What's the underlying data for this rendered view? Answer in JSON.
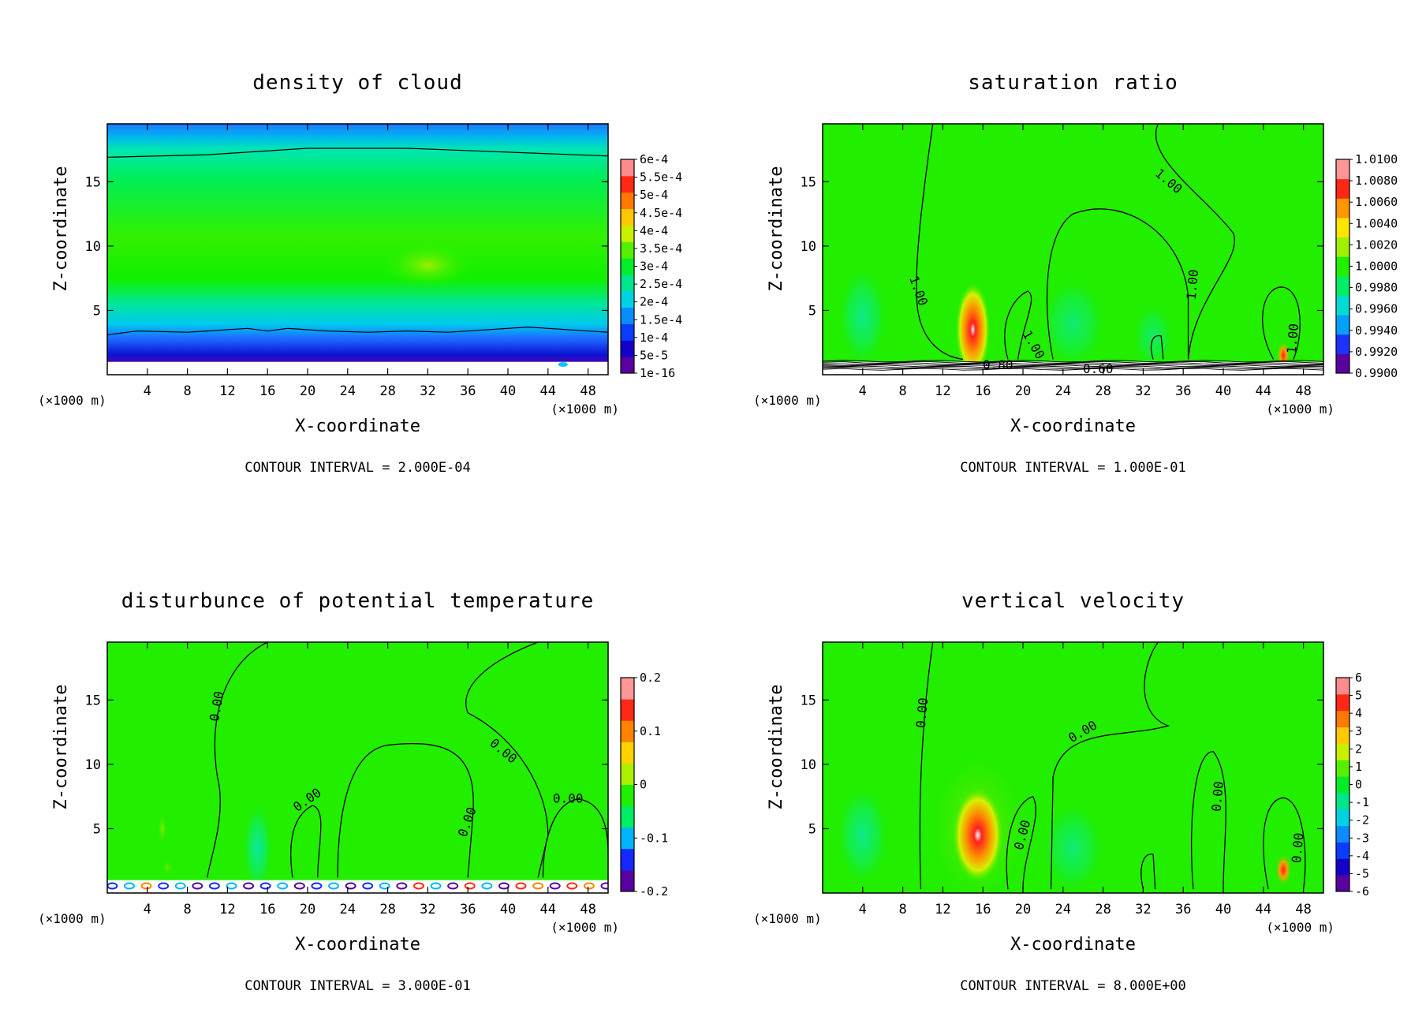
{
  "chart_data": [
    {
      "type": "heatmap",
      "title": "density of cloud",
      "xlabel": "X-coordinate",
      "ylabel": "Z-coordinate",
      "x_unit_left": "(×1000 m)",
      "x_unit_right": "(×1000 m)",
      "x_ticks": [
        "4",
        "8",
        "12",
        "16",
        "20",
        "24",
        "28",
        "32",
        "36",
        "40",
        "44",
        "48"
      ],
      "y_ticks": [
        "5",
        "10",
        "15"
      ],
      "xlim": [
        0,
        50
      ],
      "ylim": [
        0,
        19.5
      ],
      "colorbar": [
        "1e-16",
        "5e-5",
        "1e-4",
        "1.5e-4",
        "2e-4",
        "2.5e-4",
        "3e-4",
        "3.5e-4",
        "4e-4",
        "4.5e-4",
        "5e-4",
        "5.5e-4",
        "6e-4"
      ],
      "contour_labels": [],
      "contour_interval": "CONTOUR INTERVAL = 2.000E-04"
    },
    {
      "type": "heatmap",
      "title": "saturation ratio",
      "xlabel": "X-coordinate",
      "ylabel": "Z-coordinate",
      "x_unit_left": "(×1000 m)",
      "x_unit_right": "(×1000 m)",
      "x_ticks": [
        "4",
        "8",
        "12",
        "16",
        "20",
        "24",
        "28",
        "32",
        "36",
        "40",
        "44",
        "48"
      ],
      "y_ticks": [
        "5",
        "10",
        "15"
      ],
      "xlim": [
        0,
        50
      ],
      "ylim": [
        0,
        19.5
      ],
      "colorbar": [
        "0.9900",
        "0.9920",
        "0.9940",
        "0.9960",
        "0.9980",
        "1.0000",
        "1.0020",
        "1.0040",
        "1.0060",
        "1.0080",
        "1.0100"
      ],
      "contour_labels": [
        "1.00",
        "1.00",
        "1.00",
        "1.00",
        "1.00",
        "0.80",
        "0.60"
      ],
      "contour_interval": "CONTOUR INTERVAL = 1.000E-01"
    },
    {
      "type": "heatmap",
      "title": "disturbunce of potential temperature",
      "xlabel": "X-coordinate",
      "ylabel": "Z-coordinate",
      "x_unit_left": "(×1000 m)",
      "x_unit_right": "(×1000 m)",
      "x_ticks": [
        "4",
        "8",
        "12",
        "16",
        "20",
        "24",
        "28",
        "32",
        "36",
        "40",
        "44",
        "48"
      ],
      "y_ticks": [
        "5",
        "10",
        "15"
      ],
      "xlim": [
        0,
        50
      ],
      "ylim": [
        0,
        19.5
      ],
      "colorbar": [
        "-0.2",
        "-0.1",
        "0",
        "0.1",
        "0.2"
      ],
      "contour_labels": [
        "0.00",
        "0.00",
        "0.00",
        "0.00",
        "0.00"
      ],
      "contour_interval": "CONTOUR INTERVAL = 3.000E-01"
    },
    {
      "type": "heatmap",
      "title": "vertical velocity",
      "xlabel": "X-coordinate",
      "ylabel": "Z-coordinate",
      "x_unit_left": "(×1000 m)",
      "x_unit_right": "(×1000 m)",
      "x_ticks": [
        "4",
        "8",
        "12",
        "16",
        "20",
        "24",
        "28",
        "32",
        "36",
        "40",
        "44",
        "48"
      ],
      "y_ticks": [
        "5",
        "10",
        "15"
      ],
      "xlim": [
        0,
        50
      ],
      "ylim": [
        0,
        19.5
      ],
      "colorbar": [
        "-6",
        "-5",
        "-4",
        "-3",
        "-2",
        "-1",
        "0",
        "1",
        "2",
        "3",
        "4",
        "5",
        "6"
      ],
      "contour_labels": [
        "0.00",
        "0.00",
        "0.00",
        "0.00",
        "0.00"
      ],
      "contour_interval": "CONTOUR INTERVAL = 8.000E+00"
    }
  ]
}
